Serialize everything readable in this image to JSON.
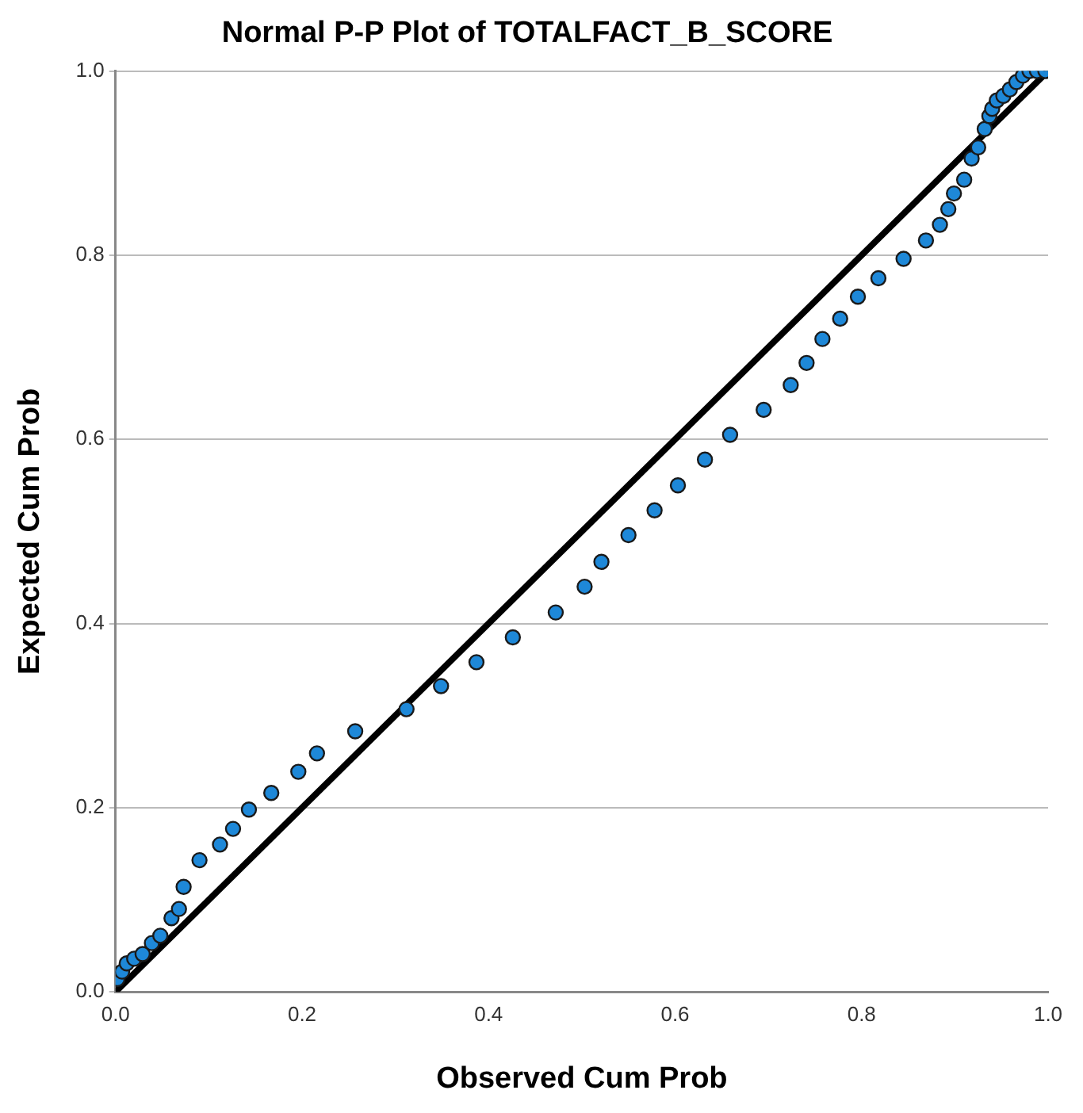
{
  "chart_data": {
    "type": "scatter",
    "title": "Normal P-P Plot of TOTALFACT_B_SCORE",
    "xlabel": "Observed Cum Prob",
    "ylabel": "Expected Cum Prob",
    "xlim": [
      0,
      1
    ],
    "ylim": [
      0,
      1
    ],
    "xticks": [
      {
        "value": 0,
        "label": "0.0"
      },
      {
        "value": 0.2,
        "label": "0.2"
      },
      {
        "value": 0.4,
        "label": "0.4"
      },
      {
        "value": 0.6,
        "label": "0.6"
      },
      {
        "value": 0.8,
        "label": "0.8"
      },
      {
        "value": 1,
        "label": "1.0"
      }
    ],
    "yticks": [
      {
        "value": 0,
        "label": "0.0"
      },
      {
        "value": 0.2,
        "label": "0.2"
      },
      {
        "value": 0.4,
        "label": "0.4"
      },
      {
        "value": 0.6,
        "label": "0.6"
      },
      {
        "value": 0.8,
        "label": "0.8"
      },
      {
        "value": 1,
        "label": "1.0"
      }
    ],
    "grid": "y",
    "legend": false,
    "marker": "circle",
    "series": [
      {
        "color": "#1e88d8",
        "x": [
          0.002,
          0.007,
          0.012,
          0.02,
          0.029,
          0.039,
          0.048,
          0.06,
          0.068,
          0.073,
          0.09,
          0.112,
          0.126,
          0.143,
          0.167,
          0.196,
          0.216,
          0.257,
          0.312,
          0.349,
          0.387,
          0.426,
          0.472,
          0.503,
          0.521,
          0.55,
          0.578,
          0.603,
          0.632,
          0.659,
          0.695,
          0.724,
          0.741,
          0.758,
          0.777,
          0.796,
          0.818,
          0.845,
          0.869,
          0.884,
          0.893,
          0.899,
          0.91,
          0.918,
          0.925,
          0.932,
          0.937,
          0.94,
          0.945,
          0.952,
          0.959,
          0.966,
          0.973,
          0.98,
          0.988,
          0.997
        ],
        "values": [
          0.014,
          0.022,
          0.031,
          0.036,
          0.041,
          0.053,
          0.061,
          0.08,
          0.09,
          0.114,
          0.143,
          0.16,
          0.177,
          0.198,
          0.216,
          0.239,
          0.259,
          0.283,
          0.307,
          0.332,
          0.358,
          0.385,
          0.412,
          0.44,
          0.467,
          0.496,
          0.523,
          0.55,
          0.578,
          0.605,
          0.632,
          0.659,
          0.683,
          0.709,
          0.731,
          0.755,
          0.775,
          0.796,
          0.816,
          0.833,
          0.85,
          0.867,
          0.882,
          0.905,
          0.917,
          0.937,
          0.951,
          0.959,
          0.968,
          0.973,
          0.98,
          0.988,
          0.995,
          1.0,
          1.0,
          1.0
        ]
      },
      {
        "type": "line",
        "color": "#000000",
        "marker": "none",
        "x": [
          0,
          1
        ],
        "values": [
          0,
          1
        ]
      }
    ]
  }
}
